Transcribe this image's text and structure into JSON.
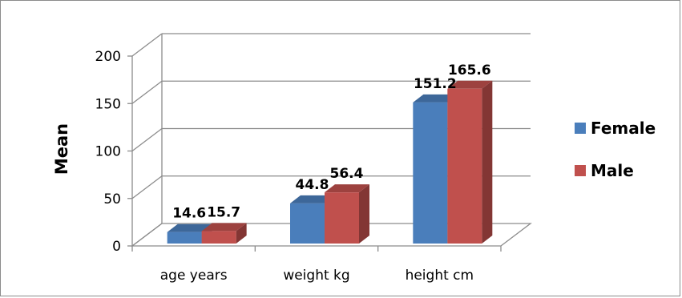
{
  "chart_data": {
    "type": "bar",
    "categories": [
      "age years",
      "weight kg",
      "height cm"
    ],
    "series": [
      {
        "name": "Female",
        "values": [
          14.6,
          44.8,
          151.2
        ],
        "labels": [
          "14.6",
          "44.8",
          "151.2"
        ],
        "color": "#4a7ebb"
      },
      {
        "name": "Male",
        "values": [
          15.7,
          56.4,
          165.6
        ],
        "labels": [
          "15.7",
          "56.4",
          "165.6"
        ],
        "color": "#c0504d"
      }
    ],
    "ylabel": "Mean",
    "xlabel": "",
    "ylim": [
      0,
      200
    ],
    "yticks": [
      "0",
      "50",
      "100",
      "150",
      "200"
    ],
    "grid": true,
    "legend": "right",
    "three_d": true
  }
}
